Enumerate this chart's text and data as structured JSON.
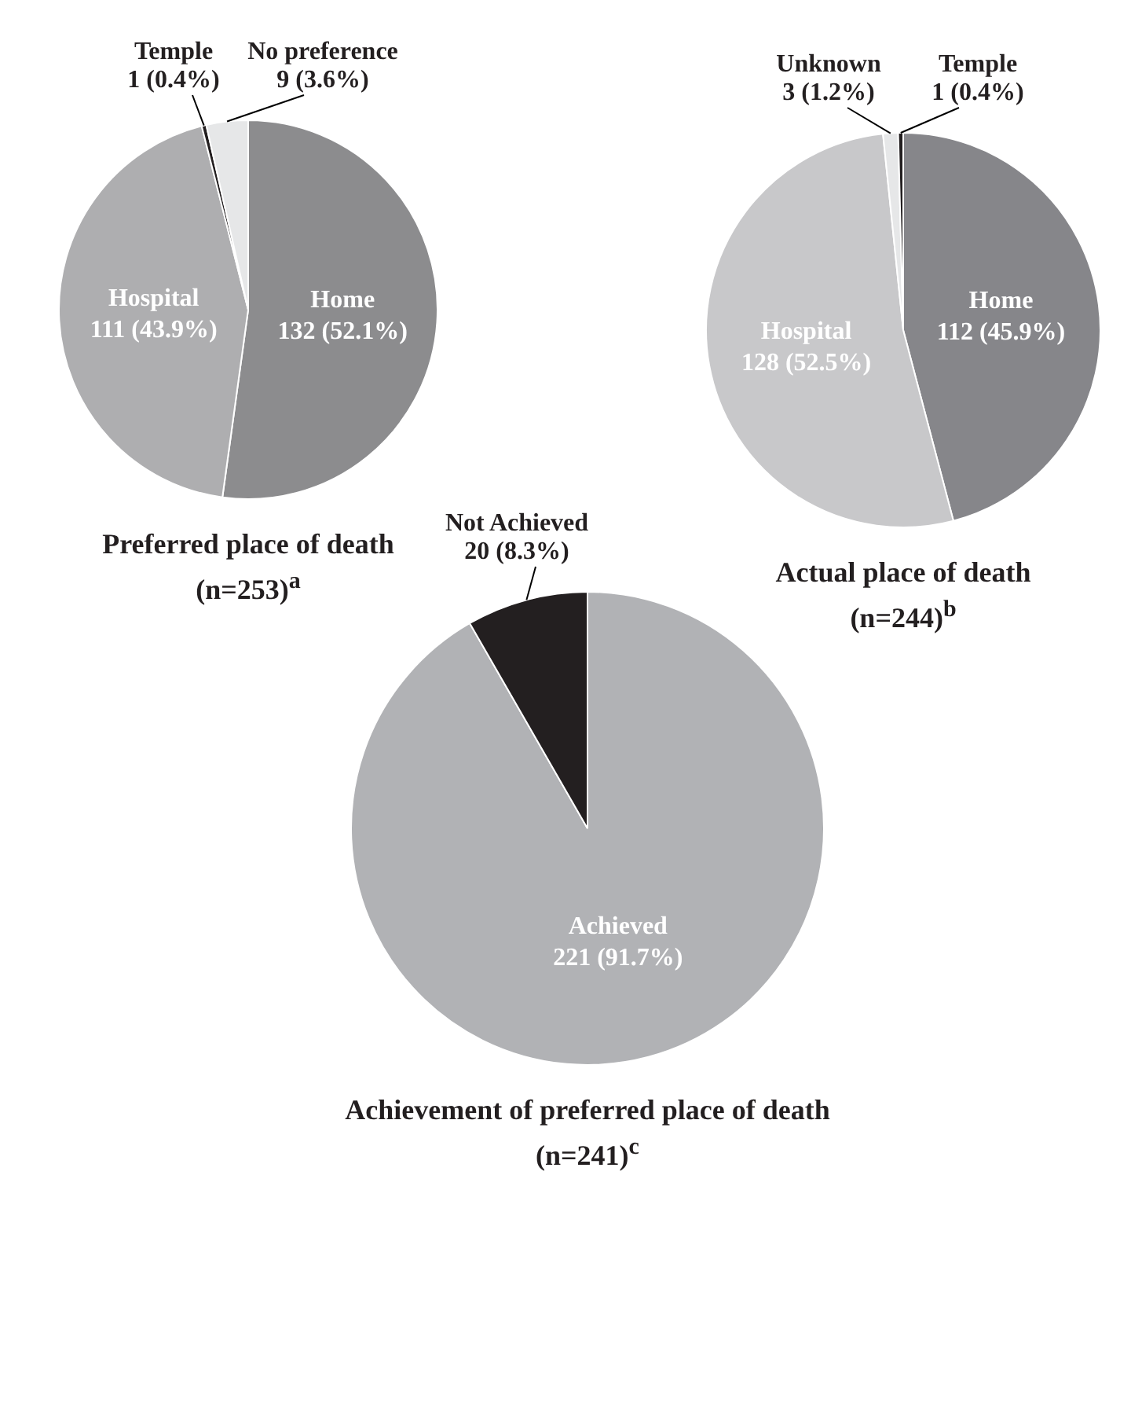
{
  "chart_data": [
    {
      "type": "pie",
      "title": "Preferred place of death",
      "subtitle": "(n=253)$^{a}$",
      "categories": [
        "Home",
        "Hospital",
        "Temple",
        "No preference"
      ],
      "values": [
        132,
        111,
        1,
        9
      ],
      "colors": [
        "#8c8c8e",
        "#aeaeb0",
        "#231f20",
        "#e6e7e8"
      ],
      "value_labels": [
        "132 (52.1%)",
        "111 (43.9%)",
        "1 (0.4%)",
        "9 (3.6%)"
      ],
      "legend": false
    },
    {
      "type": "pie",
      "title": "Actual place of death",
      "subtitle": "(n=244)$^{b}$",
      "categories": [
        "Home",
        "Hospital",
        "Unknown",
        "Temple"
      ],
      "values": [
        112,
        128,
        3,
        1
      ],
      "colors": [
        "#86868a",
        "#c8c8ca",
        "#e6e7e8",
        "#231f20"
      ],
      "value_labels": [
        "112 (45.9%)",
        "128 (52.5%)",
        "3 (1.2%)",
        "1 (0.4%)"
      ],
      "legend": false
    },
    {
      "type": "pie",
      "title": "Achievement of preferred place of death",
      "subtitle": "(n=241)$^{c}$",
      "categories": [
        "Achieved",
        "Not Achieved"
      ],
      "values": [
        221,
        20
      ],
      "colors": [
        "#b1b2b5",
        "#231f20"
      ],
      "value_labels": [
        "221 (91.7%)",
        "20 (8.3%)"
      ],
      "legend": false
    }
  ]
}
